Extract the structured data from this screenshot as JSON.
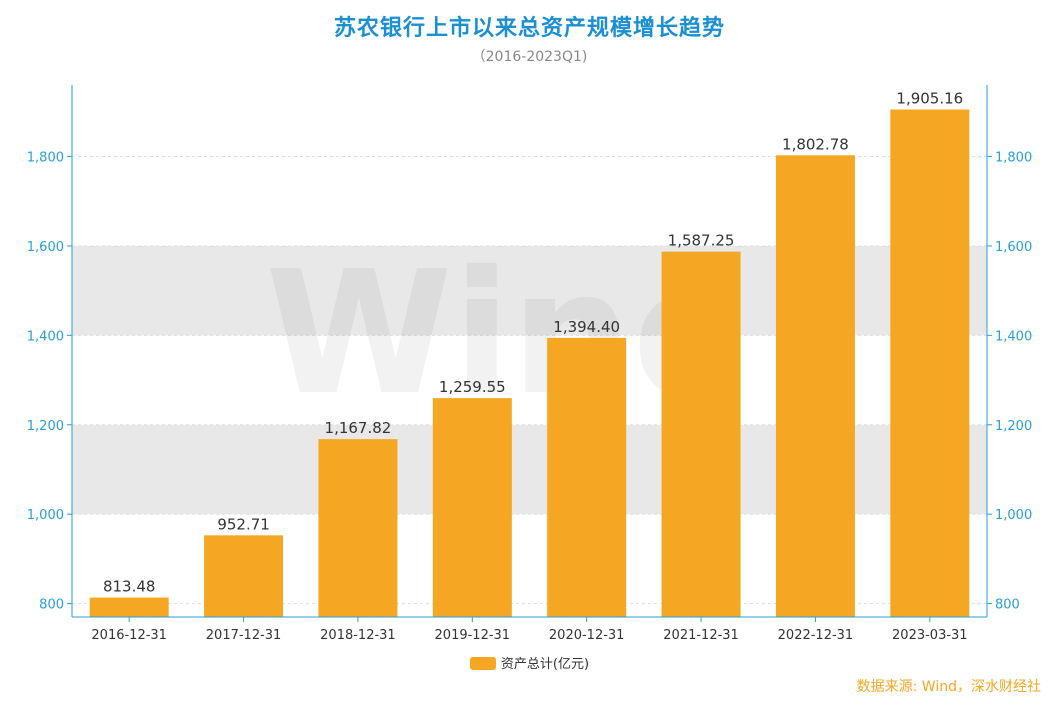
{
  "title": "苏农银行上市以来总资产规模增长趋势",
  "subtitle": "（2016-2023Q1)",
  "watermark": "Wind",
  "source": "数据来源: Wind，深水财经社",
  "colors": {
    "bar": "#f5a623",
    "axis": "#2a9fd6",
    "band": "#e8e8e8",
    "title": "#1a8fd1",
    "source": "#f5a623"
  },
  "chart_data": {
    "type": "bar",
    "categories": [
      "2016-12-31",
      "2017-12-31",
      "2018-12-31",
      "2019-12-31",
      "2020-12-31",
      "2021-12-31",
      "2022-12-31",
      "2023-03-31"
    ],
    "series": [
      {
        "name": "资产总计(亿元)",
        "values": [
          813.48,
          952.71,
          1167.82,
          1259.55,
          1394.4,
          1587.25,
          1802.78,
          1905.16
        ],
        "labels": [
          "813.48",
          "952.71",
          "1,167.82",
          "1,259.55",
          "1,394.40",
          "1,587.25",
          "1,802.78",
          "1,905.16"
        ]
      }
    ],
    "ylim": [
      770,
      1960
    ],
    "yticks": [
      800,
      1000,
      1200,
      1400,
      1600,
      1800
    ],
    "ytick_labels": [
      "800",
      "1,000",
      "1,200",
      "1,400",
      "1,600",
      "1,800"
    ],
    "legend": "资产总计(亿元)",
    "legend_position": "bottom-center"
  }
}
